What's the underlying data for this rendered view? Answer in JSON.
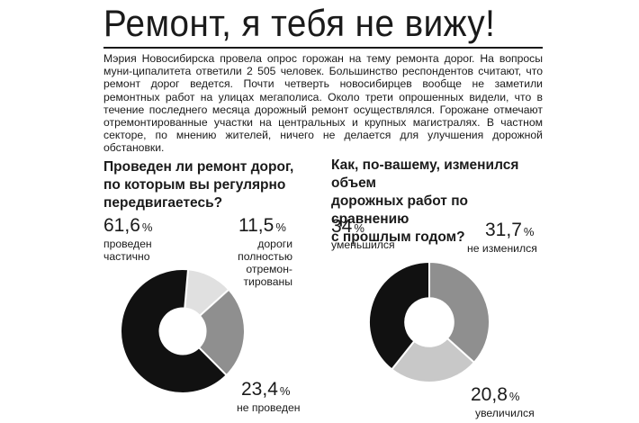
{
  "article": {
    "title": "Ремонт, я тебя не вижу!",
    "lead": "Мэрия Новосибирска провела опрос горожан на тему ремонта дорог. На вопросы муни-ципалитета ответили 2 505 человек. Большинство респондентов считают, что ремонт дорог ведется. Почти четверть новосибирцев вообще не заметили ремонтных работ на улицах мегаполиса. Около трети опрошенных видели, что в течение последнего месяца дорожный ремонт осуществлялся. Горожане отмечают отремонтированные участки на центральных и крупных магистралях. В частном секторе, по мнению жителей, ничего не делается для улучшения дорожной обстановки."
  },
  "chart_data": [
    {
      "type": "pie",
      "title": "Проведен ли ремонт дорог, по которым вы регулярно передвигаетесь?",
      "title_lines": [
        "Проведен ли ремонт дорог,",
        "по которым вы регулярно",
        "передвигаетесь?"
      ],
      "slices": [
        {
          "value_text": "61,6",
          "value": 61.6,
          "label": "проведен частично",
          "label_lines": [
            "проведен",
            "частично"
          ],
          "color": "#111111"
        },
        {
          "value_text": "11,5",
          "value": 11.5,
          "label": "дороги полностью отремон-тированы",
          "label_lines": [
            "дороги",
            "полностью",
            "отремон-",
            "тированы"
          ],
          "color": "#e0e0e0"
        },
        {
          "value_text": "23,4",
          "value": 23.4,
          "label": "не проведен",
          "label_lines": [
            "не проведен"
          ],
          "color": "#8f8f8f"
        }
      ],
      "unit": "%"
    },
    {
      "type": "pie",
      "title": "Как, по-вашему, изменился объем дорожных работ по сравнению с прошлым годом?",
      "title_lines": [
        "Как, по-вашему, изменился объем",
        "дорожных работ по сравнению",
        "с прошлым годом?"
      ],
      "slices": [
        {
          "value_text": "34",
          "value": 34,
          "label": "уменьшился",
          "label_lines": [
            "уменьшился"
          ],
          "color": "#111111"
        },
        {
          "value_text": "31,7",
          "value": 31.7,
          "label": "не изменился",
          "label_lines": [
            "не изменился"
          ],
          "color": "#8f8f8f"
        },
        {
          "value_text": "20,8",
          "value": 20.8,
          "label": "увеличился",
          "label_lines": [
            "увеличился"
          ],
          "color": "#c8c8c8"
        }
      ],
      "unit": "%"
    }
  ]
}
